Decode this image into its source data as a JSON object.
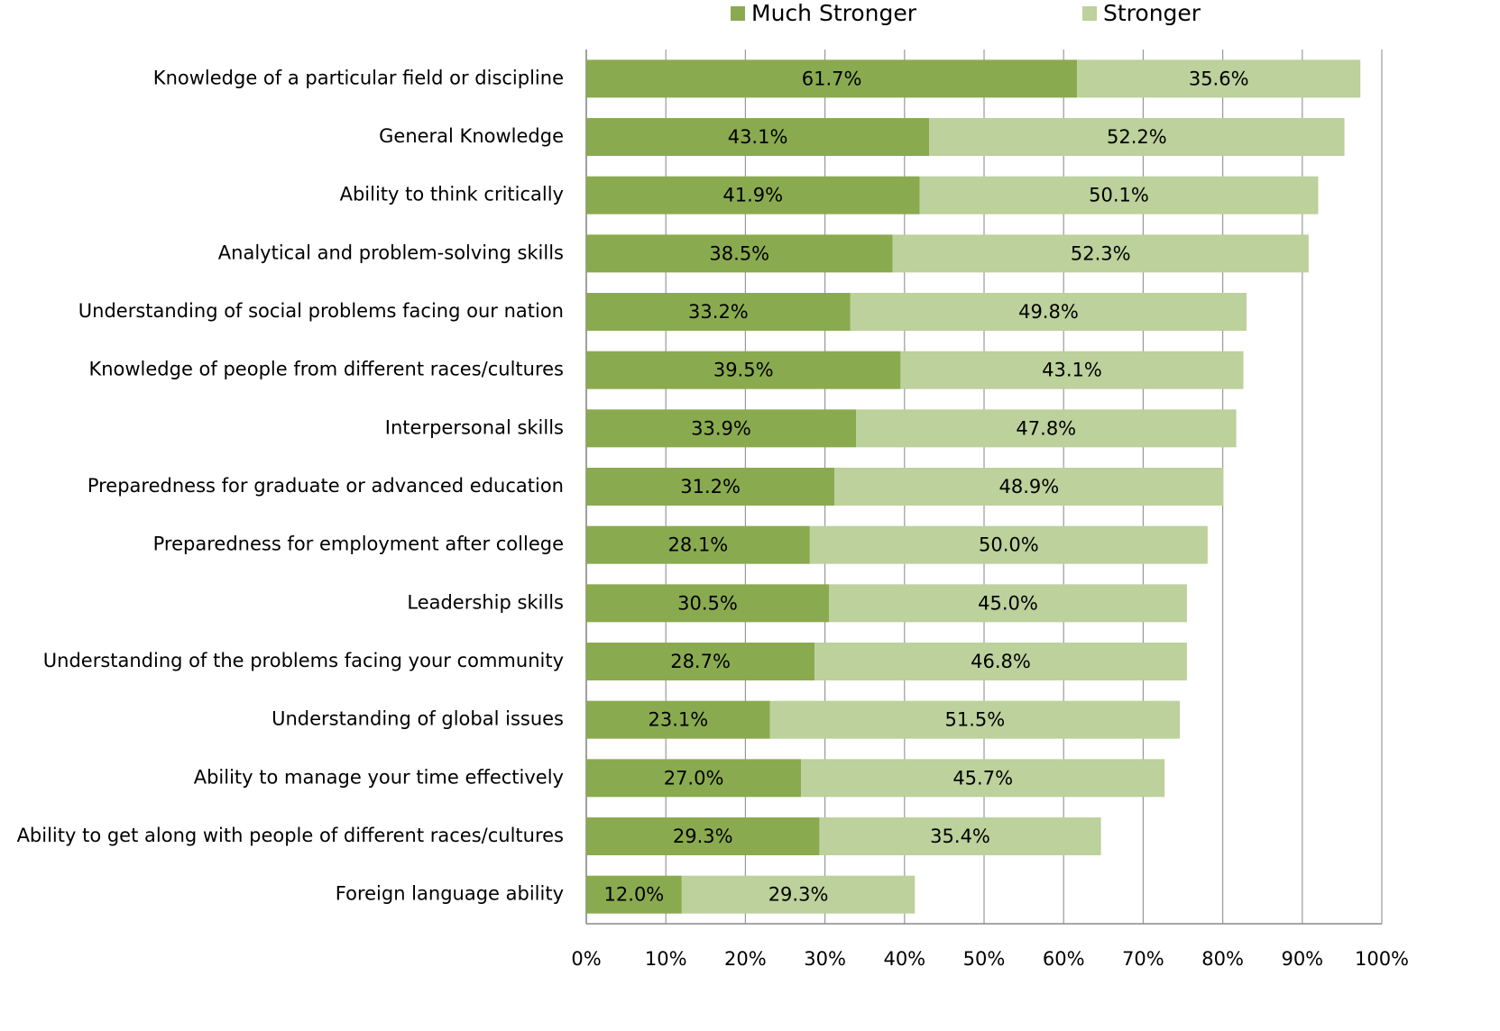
{
  "chart_data": {
    "type": "stacked_bar_horizontal",
    "categories": [
      "Knowledge of a particular field or discipline",
      "General Knowledge",
      "Ability to think critically",
      "Analytical and problem-solving skills",
      "Understanding of social problems facing our nation",
      "Knowledge of people from different races/cultures",
      "Interpersonal skills",
      "Preparedness for graduate or advanced education",
      "Preparedness for employment after college",
      "Leadership skills",
      "Understanding of the problems facing your community",
      "Understanding of global issues",
      "Ability to manage your time effectively",
      "Ability to get along with people of different races/cultures",
      "Foreign language ability"
    ],
    "series": [
      {
        "name": "Much Stronger",
        "color": "#8aaa4f",
        "values": [
          61.7,
          43.1,
          41.9,
          38.5,
          33.2,
          39.5,
          33.9,
          31.2,
          28.1,
          30.5,
          28.7,
          23.1,
          27.0,
          29.3,
          12.0
        ],
        "value_labels": [
          "61.7%",
          "43.1%",
          "41.9%",
          "38.5%",
          "33.2%",
          "39.5%",
          "33.9%",
          "31.2%",
          "28.1%",
          "30.5%",
          "28.7%",
          "23.1%",
          "27.0%",
          "29.3%",
          "12.0%"
        ]
      },
      {
        "name": "Stronger",
        "color": "#bcd19b",
        "values": [
          35.6,
          52.2,
          50.1,
          52.3,
          49.8,
          43.1,
          47.8,
          48.9,
          50.0,
          45.0,
          46.8,
          51.5,
          45.7,
          35.4,
          29.3
        ],
        "value_labels": [
          "35.6%",
          "52.2%",
          "50.1%",
          "52.3%",
          "49.8%",
          "43.1%",
          "47.8%",
          "48.9%",
          "50.0%",
          "45.0%",
          "46.8%",
          "51.5%",
          "45.7%",
          "35.4%",
          "29.3%"
        ]
      }
    ],
    "xlim": [
      0,
      100
    ],
    "xticks": [
      {
        "value": 0,
        "label": "0%"
      },
      {
        "value": 10,
        "label": "10%"
      },
      {
        "value": 20,
        "label": "20%"
      },
      {
        "value": 30,
        "label": "30%"
      },
      {
        "value": 40,
        "label": "40%"
      },
      {
        "value": 50,
        "label": "50%"
      },
      {
        "value": 60,
        "label": "60%"
      },
      {
        "value": 70,
        "label": "70%"
      },
      {
        "value": 80,
        "label": "80%"
      },
      {
        "value": 90,
        "label": "90%"
      },
      {
        "value": 100,
        "label": "100%"
      }
    ],
    "grid": true,
    "legend": "top"
  }
}
